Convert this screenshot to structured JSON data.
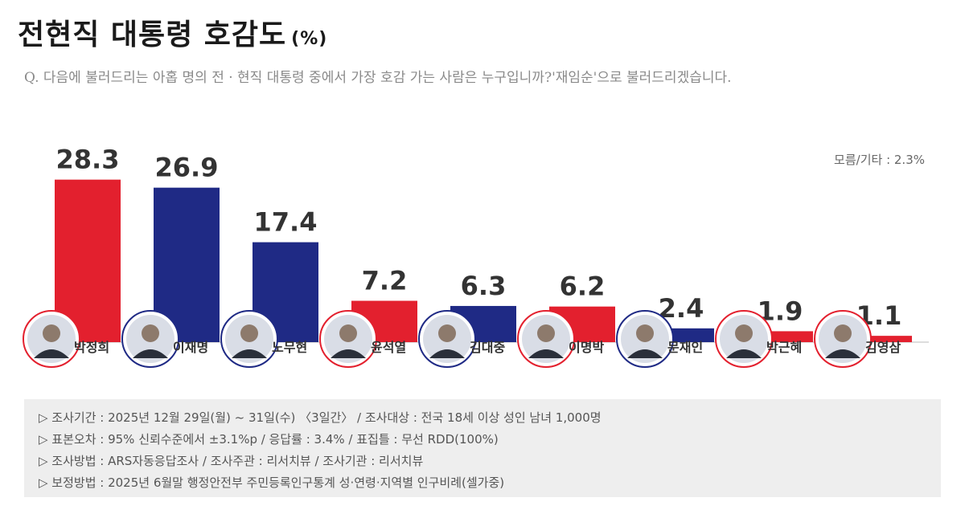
{
  "title": "전현직 대통령 호감도",
  "title_unit": "(%)",
  "question": "Q. 다음에 불러드리는 아홉 명의 전 · 현직 대통령 중에서 가장 호감 가는 사람은 누구입니까?'재임순'으로 불러드리겠습니다.",
  "other_note": "모름/기타 : 2.3%",
  "colors": {
    "red": "#e3202e",
    "blue": "#1f2a85"
  },
  "chart_data": {
    "type": "bar",
    "title": "전현직 대통령 호감도",
    "ylabel": "",
    "xlabel": "",
    "ylim": [
      0,
      30
    ],
    "categories": [
      "박정희",
      "이재명",
      "노무현",
      "윤석열",
      "김대중",
      "이명박",
      "문재인",
      "박근혜",
      "김영삼"
    ],
    "values": [
      28.3,
      26.9,
      17.4,
      7.2,
      6.3,
      6.2,
      2.4,
      1.9,
      1.1
    ],
    "value_labels": [
      "28.3",
      "26.9",
      "17.4",
      "7.2",
      "6.3",
      "6.2",
      "2.4",
      "1.9",
      "1.1"
    ],
    "bar_colors": [
      "red",
      "blue",
      "blue",
      "red",
      "blue",
      "red",
      "blue",
      "red",
      "red"
    ],
    "icons": [
      "portrait-icon",
      "portrait-icon",
      "portrait-icon",
      "portrait-icon",
      "portrait-icon",
      "portrait-icon",
      "portrait-icon",
      "portrait-icon",
      "portrait-icon"
    ],
    "grid": false,
    "legend": "none"
  },
  "notes": [
    "▷ 조사기간 : 2025년 12월 29일(월) ~ 31일(수) 〈3일간〉 / 조사대상 : 전국 18세 이상 성인 남녀 1,000명",
    "▷ 표본오차 : 95% 신뢰수준에서 ±3.1%p / 응답률 : 3.4% / 표집틀 : 무선 RDD(100%)",
    "▷ 조사방법 : ARS자동응답조사 / 조사주관 : 리서치뷰 / 조사기관 : 리서치뷰",
    "▷ 보정방법 : 2025년 6월말 행정안전부 주민등록인구통계 성·연령·지역별 인구비례(셀가중)"
  ]
}
